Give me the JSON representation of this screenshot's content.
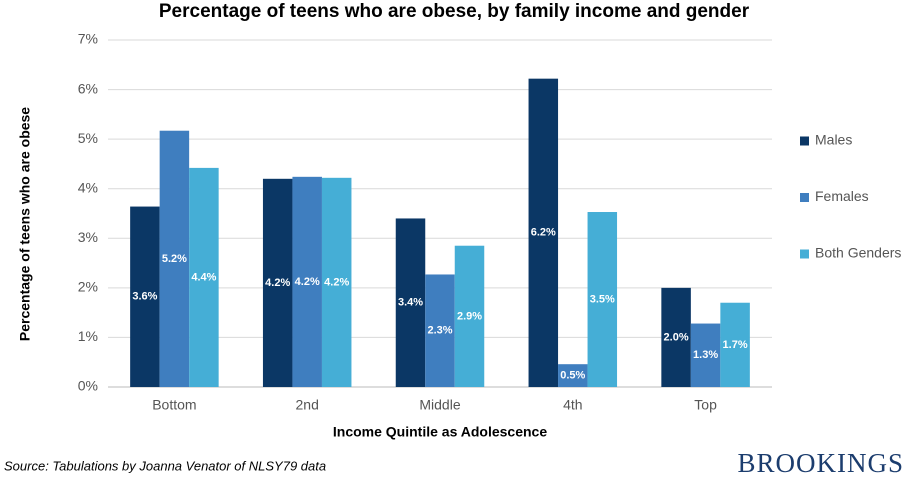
{
  "chart_data": {
    "type": "bar",
    "title": "Percentage of teens who are obese, by family income and gender",
    "x_label": "Income Quintile as Adolescence",
    "y_label": "Percentage of teens who are obese",
    "categories": [
      "Bottom",
      "2nd",
      "Middle",
      "4th",
      "Top"
    ],
    "series": [
      {
        "name": "Males",
        "color": "#0b3765",
        "values": [
          3.64,
          4.2,
          3.4,
          6.22,
          2.0
        ],
        "value_labels": [
          "3.6%",
          "4.2%",
          "3.4%",
          "6.2%",
          "2.0%"
        ]
      },
      {
        "name": "Females",
        "color": "#3f7ebf",
        "values": [
          5.17,
          4.24,
          2.27,
          0.46,
          1.28
        ],
        "value_labels": [
          "5.2%",
          "4.2%",
          "2.3%",
          "0.5%",
          "1.3%"
        ]
      },
      {
        "name": "Both Genders",
        "color": "#45aed6",
        "values": [
          4.42,
          4.22,
          2.85,
          3.53,
          1.7
        ],
        "value_labels": [
          "4.4%",
          "4.2%",
          "2.9%",
          "3.5%",
          "1.7%"
        ]
      }
    ],
    "ylim": [
      0,
      7
    ],
    "yticks": [
      {
        "value": 0,
        "label": "0%"
      },
      {
        "value": 1,
        "label": "1%"
      },
      {
        "value": 2,
        "label": "2%"
      },
      {
        "value": 3,
        "label": "3%"
      },
      {
        "value": 4,
        "label": "4%"
      },
      {
        "value": 5,
        "label": "5%"
      },
      {
        "value": 6,
        "label": "6%"
      },
      {
        "value": 7,
        "label": "7%"
      }
    ],
    "grid": true,
    "legend": "right",
    "source": "Source: Tabulations by Joanna Venator of NLSY79 data",
    "brand": "BROOKINGS"
  }
}
